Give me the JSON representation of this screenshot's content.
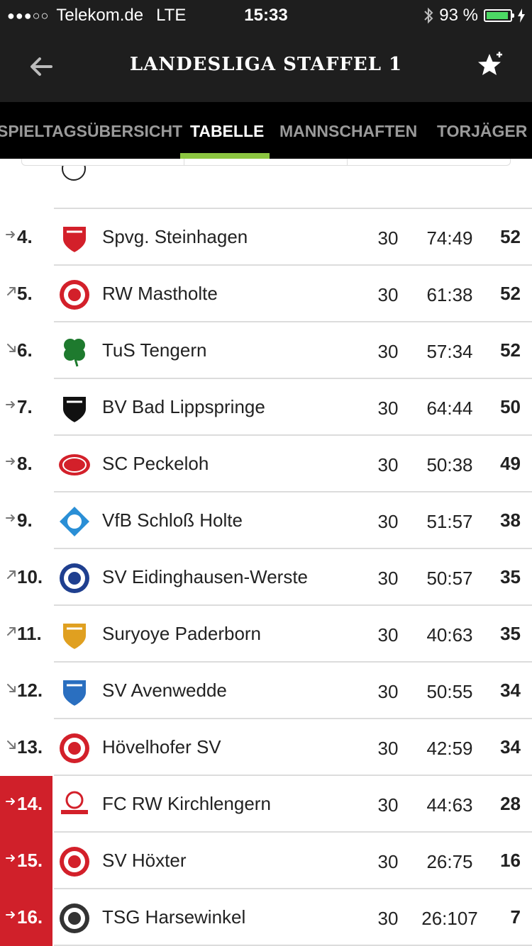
{
  "status": {
    "carrier": "Telekom.de",
    "network": "LTE",
    "time": "15:33",
    "battery": "93 %",
    "battery_level": 0.93
  },
  "header": {
    "title": "LANDESLIGA STAFFEL 1"
  },
  "tabs": [
    {
      "label": "SPIELTAGSÜBERSICHT"
    },
    {
      "label": "TABELLE"
    },
    {
      "label": "MANNSCHAFTEN"
    },
    {
      "label": "TORJÄGER"
    }
  ],
  "table": [
    {
      "rank": "4.",
      "trend": "same",
      "team": "Spvg. Steinhagen",
      "games": "30",
      "goals": "74:49",
      "points": "52",
      "relegation": false,
      "crest_color": "#d3202a",
      "crest_icon": "shield-crest"
    },
    {
      "rank": "5.",
      "trend": "up",
      "team": "RW Mastholte",
      "games": "30",
      "goals": "61:38",
      "points": "52",
      "relegation": false,
      "crest_color": "#d3202a",
      "crest_icon": "round-crest"
    },
    {
      "rank": "6.",
      "trend": "down",
      "team": "TuS Tengern",
      "games": "30",
      "goals": "57:34",
      "points": "52",
      "relegation": false,
      "crest_color": "#1e7a2e",
      "crest_icon": "clover-crest"
    },
    {
      "rank": "7.",
      "trend": "same",
      "team": "BV Bad Lippspringe",
      "games": "30",
      "goals": "64:44",
      "points": "50",
      "relegation": false,
      "crest_color": "#111111",
      "crest_icon": "shield-crest"
    },
    {
      "rank": "8.",
      "trend": "same",
      "team": "SC Peckeloh",
      "games": "30",
      "goals": "50:38",
      "points": "49",
      "relegation": false,
      "crest_color": "#d3202a",
      "crest_icon": "oval-crest"
    },
    {
      "rank": "9.",
      "trend": "same",
      "team": "VfB Schloß Holte",
      "games": "30",
      "goals": "51:57",
      "points": "38",
      "relegation": false,
      "crest_color": "#2a8fd6",
      "crest_icon": "diamond-crest"
    },
    {
      "rank": "10.",
      "trend": "up",
      "team": "SV Eidinghausen-Werste",
      "games": "30",
      "goals": "50:57",
      "points": "35",
      "relegation": false,
      "crest_color": "#1f3f8f",
      "crest_icon": "round-crest"
    },
    {
      "rank": "11.",
      "trend": "up",
      "team": "Suryoye Paderborn",
      "games": "30",
      "goals": "40:63",
      "points": "35",
      "relegation": false,
      "crest_color": "#e0a020",
      "crest_icon": "shield-crest"
    },
    {
      "rank": "12.",
      "trend": "down",
      "team": "SV Avenwedde",
      "games": "30",
      "goals": "50:55",
      "points": "34",
      "relegation": false,
      "crest_color": "#2a6fc0",
      "crest_icon": "shield-crest"
    },
    {
      "rank": "13.",
      "trend": "down",
      "team": "Hövelhofer SV",
      "games": "30",
      "goals": "42:59",
      "points": "34",
      "relegation": false,
      "crest_color": "#d3202a",
      "crest_icon": "round-crest"
    },
    {
      "rank": "14.",
      "trend": "same",
      "team": "FC RW Kirchlengern",
      "games": "30",
      "goals": "44:63",
      "points": "28",
      "relegation": true,
      "crest_color": "#d3202a",
      "crest_icon": "ball-crest"
    },
    {
      "rank": "15.",
      "trend": "same",
      "team": "SV Höxter",
      "games": "30",
      "goals": "26:75",
      "points": "16",
      "relegation": true,
      "crest_color": "#d3202a",
      "crest_icon": "round-crest"
    },
    {
      "rank": "16.",
      "trend": "same",
      "team": "TSG Harsewinkel",
      "games": "30",
      "goals": "26:107",
      "points": "7",
      "relegation": true,
      "crest_color": "#333333",
      "crest_icon": "round-crest"
    }
  ]
}
